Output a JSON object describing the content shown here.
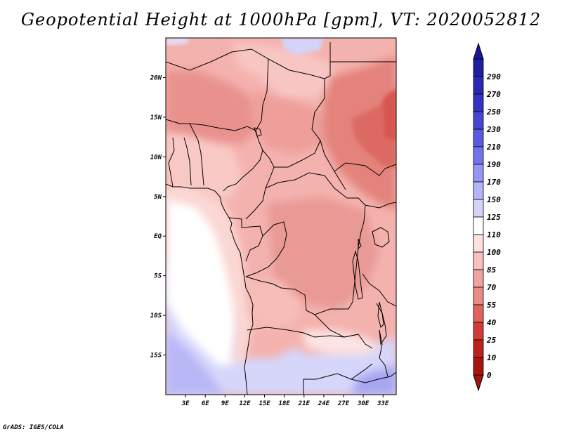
{
  "title": "Geopotential Height at 1000hPa [gpm], VT: 2020052812",
  "credit": "GrADS: IGES/COLA",
  "map": {
    "lon_range": [
      0,
      35
    ],
    "lat_range": [
      -20,
      25
    ],
    "lon_ticks": [
      {
        "value": 3,
        "label": "3E"
      },
      {
        "value": 6,
        "label": "6E"
      },
      {
        "value": 9,
        "label": "9E"
      },
      {
        "value": 12,
        "label": "12E"
      },
      {
        "value": 15,
        "label": "15E"
      },
      {
        "value": 18,
        "label": "18E"
      },
      {
        "value": 21,
        "label": "21E"
      },
      {
        "value": 24,
        "label": "24E"
      },
      {
        "value": 27,
        "label": "27E"
      },
      {
        "value": 30,
        "label": "30E"
      },
      {
        "value": 33,
        "label": "33E"
      }
    ],
    "lat_ticks": [
      {
        "value": 20,
        "label": "20N"
      },
      {
        "value": 15,
        "label": "15N"
      },
      {
        "value": 10,
        "label": "10N"
      },
      {
        "value": 5,
        "label": "5N"
      },
      {
        "value": 0,
        "label": "EQ"
      },
      {
        "value": -5,
        "label": "5S"
      },
      {
        "value": -10,
        "label": "10S"
      },
      {
        "value": -15,
        "label": "15S"
      }
    ]
  },
  "colorbar": {
    "levels": [
      {
        "label": "290",
        "color": "#1e1ea0"
      },
      {
        "label": "270",
        "color": "#2828b4"
      },
      {
        "label": "250",
        "color": "#3232c3"
      },
      {
        "label": "230",
        "color": "#4646d2"
      },
      {
        "label": "210",
        "color": "#5a5ae0"
      },
      {
        "label": "190",
        "color": "#7373ec"
      },
      {
        "label": "170",
        "color": "#9696f5"
      },
      {
        "label": "150",
        "color": "#b4b4f8"
      },
      {
        "label": "125",
        "color": "#d4d4fb"
      },
      {
        "label": "110",
        "color": "#ffffff"
      },
      {
        "label": "100",
        "color": "#fde2e0"
      },
      {
        "label": "85",
        "color": "#f8c0bd"
      },
      {
        "label": "70",
        "color": "#f0a29e"
      },
      {
        "label": "55",
        "color": "#e88a86"
      },
      {
        "label": "40",
        "color": "#e0625c"
      },
      {
        "label": "25",
        "color": "#d03c36"
      },
      {
        "label": "10",
        "color": "#c0201c"
      },
      {
        "label": "0",
        "color": "#a81410"
      }
    ],
    "top_color": "#1c1496",
    "bottom_color": "#a01410"
  }
}
